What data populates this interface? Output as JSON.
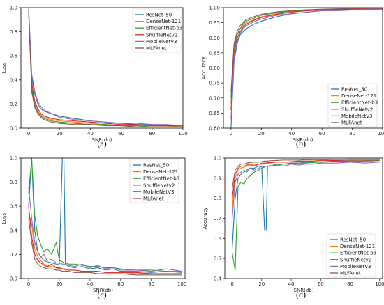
{
  "figure": {
    "series_names": [
      "ResNet_50",
      "DenseNet-121",
      "EfficientNet-b3",
      "ShuffleNetv2",
      "MobileNetV3",
      "MLFAnet"
    ],
    "colors": [
      "#1f77b4",
      "#ff7f0e",
      "#2ca02c",
      "#d62728",
      "#9467bd",
      "#8c564b"
    ]
  },
  "chart_data": [
    {
      "panel": "(a)",
      "type": "line",
      "xlabel": "SNR(db)",
      "ylabel": "Loss",
      "xlim": [
        -5,
        100
      ],
      "ylim": [
        0.0,
        1.0
      ],
      "xticks": [
        0,
        20,
        40,
        60,
        80,
        100
      ],
      "yticks": [
        0.0,
        0.2,
        0.4,
        0.6,
        0.8,
        1.0
      ],
      "ytick_labels": [
        "0.0",
        "0.2",
        "0.4",
        "0.6",
        "0.8",
        "1.0"
      ],
      "legend": "top-right",
      "x": [
        0,
        2,
        4,
        6,
        8,
        10,
        15,
        20,
        30,
        40,
        50,
        60,
        70,
        80,
        90,
        100
      ],
      "series": [
        {
          "name": "ResNet_50",
          "values": [
            0.98,
            0.42,
            0.28,
            0.2,
            0.16,
            0.14,
            0.12,
            0.1,
            0.08,
            0.06,
            0.05,
            0.04,
            0.03,
            0.03,
            0.02,
            0.02
          ]
        },
        {
          "name": "DenseNet-121",
          "values": [
            0.97,
            0.35,
            0.2,
            0.14,
            0.11,
            0.09,
            0.07,
            0.06,
            0.05,
            0.04,
            0.03,
            0.02,
            0.02,
            0.02,
            0.02,
            0.01
          ]
        },
        {
          "name": "EfficientNet-b3",
          "values": [
            0.96,
            0.33,
            0.19,
            0.13,
            0.1,
            0.08,
            0.06,
            0.05,
            0.04,
            0.03,
            0.03,
            0.02,
            0.02,
            0.01,
            0.01,
            0.01
          ]
        },
        {
          "name": "ShuffleNetv2",
          "values": [
            0.98,
            0.38,
            0.22,
            0.16,
            0.12,
            0.1,
            0.08,
            0.07,
            0.06,
            0.05,
            0.04,
            0.03,
            0.03,
            0.02,
            0.02,
            0.02
          ]
        },
        {
          "name": "MobileNetV3",
          "values": [
            0.99,
            0.45,
            0.3,
            0.22,
            0.18,
            0.15,
            0.12,
            0.09,
            0.07,
            0.06,
            0.05,
            0.04,
            0.04,
            0.03,
            0.03,
            0.02
          ]
        },
        {
          "name": "MLFAnet",
          "values": [
            0.97,
            0.3,
            0.17,
            0.12,
            0.09,
            0.07,
            0.05,
            0.04,
            0.03,
            0.03,
            0.02,
            0.02,
            0.01,
            0.01,
            0.01,
            0.01
          ]
        }
      ]
    },
    {
      "panel": "(b)",
      "type": "line",
      "xlabel": "SNR(db)",
      "ylabel": "Accuracy",
      "xlim": [
        -5,
        100
      ],
      "ylim": [
        0.6,
        1.0
      ],
      "xticks": [
        0,
        20,
        40,
        60,
        80,
        100
      ],
      "yticks": [
        0.6,
        0.65,
        0.7,
        0.75,
        0.8,
        0.85,
        0.9,
        0.95,
        1.0
      ],
      "ytick_labels": [
        "0.60",
        "0.65",
        "0.70",
        "0.75",
        "0.80",
        "0.85",
        "0.90",
        "0.95",
        "1.00"
      ],
      "legend": "bottom-right",
      "x": [
        0,
        2,
        4,
        6,
        8,
        10,
        15,
        20,
        30,
        40,
        50,
        60,
        70,
        80,
        90,
        100
      ],
      "series": [
        {
          "name": "ResNet_50",
          "values": [
            0.6,
            0.82,
            0.88,
            0.91,
            0.92,
            0.93,
            0.945,
            0.955,
            0.97,
            0.98,
            0.985,
            0.99,
            0.99,
            0.992,
            0.994,
            0.995
          ]
        },
        {
          "name": "DenseNet-121",
          "values": [
            0.68,
            0.86,
            0.91,
            0.93,
            0.94,
            0.95,
            0.96,
            0.97,
            0.98,
            0.985,
            0.99,
            0.992,
            0.994,
            0.995,
            0.996,
            0.997
          ]
        },
        {
          "name": "EfficientNet-b3",
          "values": [
            0.7,
            0.87,
            0.91,
            0.93,
            0.945,
            0.955,
            0.965,
            0.975,
            0.983,
            0.988,
            0.99,
            0.993,
            0.995,
            0.996,
            0.997,
            0.997
          ]
        },
        {
          "name": "ShuffleNetv2",
          "values": [
            0.66,
            0.85,
            0.9,
            0.92,
            0.935,
            0.945,
            0.958,
            0.967,
            0.978,
            0.985,
            0.99,
            0.992,
            0.993,
            0.995,
            0.996,
            0.996
          ]
        },
        {
          "name": "MobileNetV3",
          "values": [
            0.63,
            0.83,
            0.89,
            0.915,
            0.93,
            0.94,
            0.953,
            0.962,
            0.975,
            0.98,
            0.985,
            0.99,
            0.99,
            0.993,
            0.995,
            0.995
          ]
        },
        {
          "name": "MLFAnet",
          "values": [
            0.72,
            0.88,
            0.92,
            0.94,
            0.95,
            0.96,
            0.97,
            0.978,
            0.986,
            0.99,
            0.993,
            0.995,
            0.996,
            0.997,
            0.998,
            0.998
          ]
        }
      ]
    },
    {
      "panel": "(c)",
      "type": "line",
      "xlabel": "SNR(db)",
      "ylabel": "Loss",
      "xlim": [
        -5,
        102
      ],
      "ylim": [
        0.0,
        1.0
      ],
      "xticks": [
        0,
        20,
        40,
        60,
        80,
        100
      ],
      "yticks": [
        0.0,
        0.2,
        0.4,
        0.6,
        0.8,
        1.0
      ],
      "ytick_labels": [
        "0.0",
        "0.2",
        "0.4",
        "0.6",
        "0.8",
        "1.0"
      ],
      "legend": "top-right",
      "x": [
        0,
        2,
        4,
        6,
        8,
        10,
        12,
        15,
        18,
        20,
        22,
        23,
        24,
        26,
        30,
        35,
        40,
        45,
        50,
        55,
        60,
        70,
        80,
        90,
        100
      ],
      "series": [
        {
          "name": "ResNet_50",
          "values": [
            0.6,
            1.0,
            0.4,
            0.22,
            0.18,
            0.15,
            0.14,
            0.13,
            0.12,
            0.12,
            1.0,
            1.0,
            0.12,
            0.1,
            0.09,
            0.1,
            0.08,
            0.09,
            0.07,
            0.08,
            0.06,
            0.06,
            0.05,
            0.06,
            0.05
          ]
        },
        {
          "name": "DenseNet-121",
          "values": [
            0.55,
            0.45,
            0.25,
            0.18,
            0.15,
            0.12,
            0.1,
            0.1,
            0.09,
            0.08,
            0.08,
            0.08,
            0.07,
            0.07,
            0.07,
            0.06,
            0.06,
            0.06,
            0.05,
            0.05,
            0.05,
            0.04,
            0.04,
            0.04,
            0.04
          ]
        },
        {
          "name": "EfficientNet-b3",
          "values": [
            0.7,
            1.0,
            0.52,
            0.35,
            0.28,
            0.22,
            0.25,
            0.2,
            0.3,
            0.15,
            0.14,
            0.13,
            0.13,
            0.12,
            0.12,
            0.11,
            0.1,
            0.1,
            0.09,
            0.09,
            0.08,
            0.07,
            0.07,
            0.06,
            0.06
          ]
        },
        {
          "name": "ShuffleNetv2",
          "values": [
            0.6,
            0.35,
            0.2,
            0.15,
            0.13,
            0.11,
            0.1,
            0.12,
            0.09,
            0.09,
            0.08,
            0.08,
            0.08,
            0.07,
            0.07,
            0.06,
            0.06,
            0.06,
            0.05,
            0.05,
            0.05,
            0.05,
            0.04,
            0.04,
            0.04
          ]
        },
        {
          "name": "MobileNetV3",
          "values": [
            0.76,
            0.5,
            0.3,
            0.22,
            0.18,
            0.2,
            0.15,
            0.16,
            0.13,
            0.13,
            0.12,
            0.12,
            0.12,
            0.11,
            0.1,
            0.12,
            0.09,
            0.11,
            0.08,
            0.09,
            0.07,
            0.07,
            0.06,
            0.08,
            0.06
          ]
        },
        {
          "name": "MLFAnet",
          "values": [
            0.5,
            0.3,
            0.16,
            0.12,
            0.1,
            0.09,
            0.08,
            0.08,
            0.07,
            0.07,
            0.06,
            0.06,
            0.06,
            0.06,
            0.05,
            0.05,
            0.05,
            0.04,
            0.04,
            0.04,
            0.04,
            0.03,
            0.03,
            0.03,
            0.03
          ]
        }
      ]
    },
    {
      "panel": "(d)",
      "type": "line",
      "xlabel": "SNR(db)",
      "ylabel": "Accuracy",
      "xlim": [
        -5,
        102
      ],
      "ylim": [
        0.4,
        1.0
      ],
      "xticks": [
        0,
        20,
        40,
        60,
        80,
        100
      ],
      "yticks": [
        0.4,
        0.5,
        0.6,
        0.7,
        0.8,
        0.9,
        1.0
      ],
      "ytick_labels": [
        "0.4",
        "0.5",
        "0.6",
        "0.7",
        "0.8",
        "0.9",
        "1.0"
      ],
      "legend": "bottom-right",
      "x": [
        0,
        2,
        4,
        6,
        8,
        10,
        12,
        15,
        18,
        20,
        22,
        23,
        24,
        26,
        30,
        35,
        40,
        45,
        50,
        55,
        60,
        70,
        80,
        90,
        100
      ],
      "series": [
        {
          "name": "ResNet_50",
          "values": [
            0.55,
            0.8,
            0.9,
            0.92,
            0.93,
            0.94,
            0.95,
            0.95,
            0.96,
            0.96,
            0.64,
            0.64,
            0.96,
            0.96,
            0.97,
            0.97,
            0.975,
            0.975,
            0.98,
            0.98,
            0.98,
            0.985,
            0.985,
            0.985,
            0.99
          ]
        },
        {
          "name": "DenseNet-121",
          "values": [
            0.75,
            0.9,
            0.94,
            0.95,
            0.955,
            0.96,
            0.965,
            0.965,
            0.97,
            0.97,
            0.97,
            0.975,
            0.975,
            0.975,
            0.98,
            0.98,
            0.98,
            0.985,
            0.985,
            0.985,
            0.99,
            0.99,
            0.99,
            0.99,
            0.99
          ]
        },
        {
          "name": "EfficientNet-b3",
          "values": [
            0.53,
            0.44,
            0.86,
            0.88,
            0.87,
            0.9,
            0.91,
            0.93,
            0.94,
            0.95,
            0.955,
            0.96,
            0.96,
            0.962,
            0.965,
            0.97,
            0.972,
            0.975,
            0.975,
            0.978,
            0.98,
            0.982,
            0.985,
            0.985,
            0.987
          ]
        },
        {
          "name": "ShuffleNetv2",
          "values": [
            0.8,
            0.92,
            0.95,
            0.96,
            0.96,
            0.965,
            0.97,
            0.96,
            0.97,
            0.975,
            0.975,
            0.975,
            0.978,
            0.978,
            0.98,
            0.98,
            0.982,
            0.985,
            0.985,
            0.985,
            0.987,
            0.988,
            0.99,
            0.99,
            0.99
          ]
        },
        {
          "name": "MobileNetV3",
          "values": [
            0.7,
            0.88,
            0.92,
            0.93,
            0.94,
            0.93,
            0.95,
            0.94,
            0.95,
            0.96,
            0.955,
            0.96,
            0.96,
            0.96,
            0.965,
            0.96,
            0.97,
            0.965,
            0.97,
            0.97,
            0.975,
            0.975,
            0.98,
            0.975,
            0.98
          ]
        },
        {
          "name": "MLFAnet",
          "values": [
            0.85,
            0.94,
            0.96,
            0.97,
            0.97,
            0.975,
            0.978,
            0.98,
            0.98,
            0.982,
            0.985,
            0.985,
            0.985,
            0.987,
            0.988,
            0.99,
            0.99,
            0.99,
            0.992,
            0.992,
            0.993,
            0.994,
            0.995,
            0.995,
            0.995
          ]
        }
      ]
    }
  ]
}
